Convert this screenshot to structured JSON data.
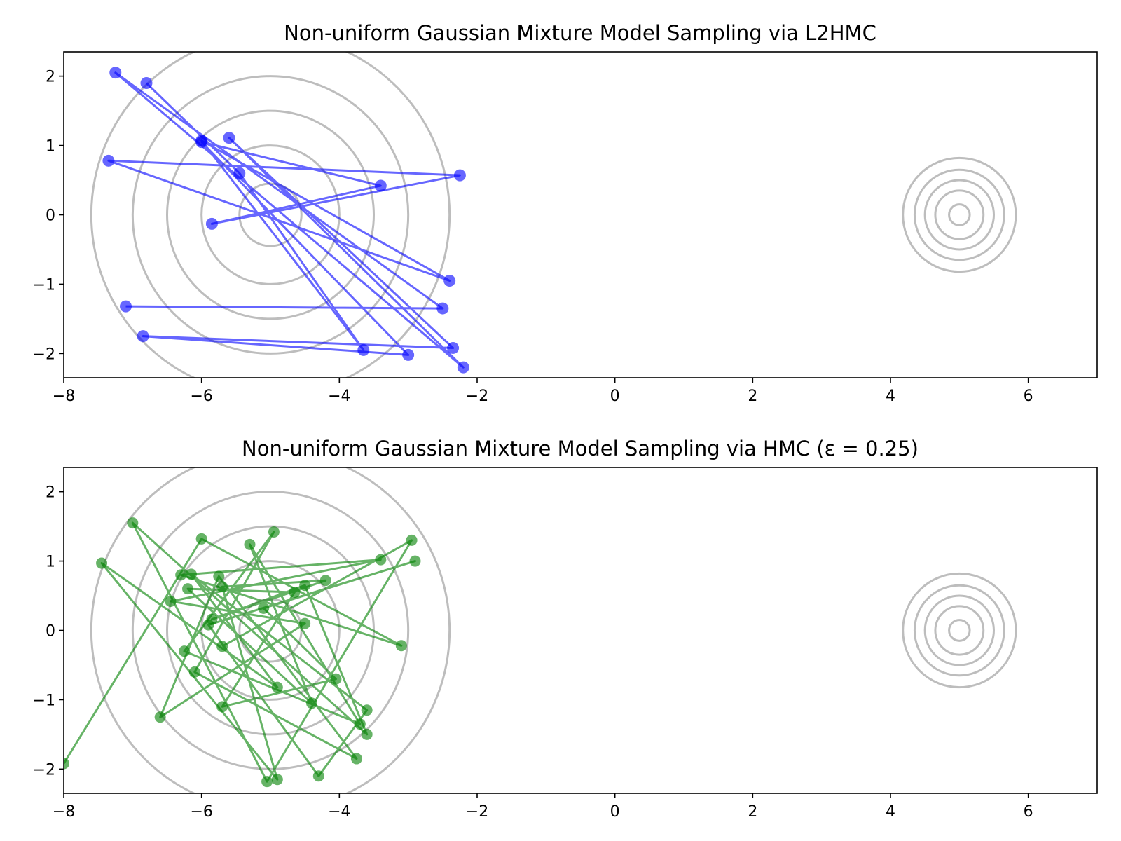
{
  "chart_data": [
    {
      "type": "line",
      "title": "Non-uniform Gaussian Mixture Model Sampling via L2HMC",
      "xlabel": "",
      "ylabel": "",
      "xlim": [
        -8,
        7
      ],
      "ylim": [
        -2.35,
        2.35
      ],
      "xticks": [
        -8,
        -6,
        -4,
        -2,
        0,
        2,
        4,
        6
      ],
      "yticks": [
        -2,
        -1,
        0,
        1,
        2
      ],
      "xtick_labels": [
        "−8",
        "−6",
        "−4",
        "−2",
        "0",
        "2",
        "4",
        "6"
      ],
      "ytick_labels": [
        "−2",
        "−1",
        "0",
        "1",
        "2"
      ],
      "grid": false,
      "contours": [
        {
          "center": [
            -5,
            0
          ],
          "radii": [
            0.45,
            1.0,
            1.5,
            2.0,
            2.6
          ]
        },
        {
          "center": [
            5,
            0
          ],
          "radii": [
            0.15,
            0.35,
            0.5,
            0.65,
            0.82
          ]
        }
      ],
      "series": [
        {
          "color": "#0000ff",
          "x": [
            -6.8,
            -5.45,
            -3.65,
            -6.0,
            -2.4,
            -7.35,
            -2.25,
            -5.85,
            -3.4,
            -6.0,
            -3.0,
            -6.85,
            -2.35,
            -5.6,
            -2.2,
            -7.25,
            -2.5,
            -7.1
          ],
          "y": [
            1.9,
            0.6,
            -1.95,
            1.07,
            -0.95,
            0.78,
            0.57,
            -0.13,
            0.42,
            1.05,
            -2.02,
            -1.75,
            -1.92,
            1.11,
            -2.2,
            2.05,
            -1.35,
            -1.32
          ]
        }
      ]
    },
    {
      "type": "line",
      "title": "Non-uniform Gaussian Mixture Model Sampling via HMC (ε = 0.25)",
      "xlabel": "",
      "ylabel": "",
      "xlim": [
        -8,
        7
      ],
      "ylim": [
        -2.35,
        2.35
      ],
      "xticks": [
        -8,
        -6,
        -4,
        -2,
        0,
        2,
        4,
        6
      ],
      "yticks": [
        -2,
        -1,
        0,
        1,
        2
      ],
      "xtick_labels": [
        "−8",
        "−6",
        "−4",
        "−2",
        "0",
        "2",
        "4",
        "6"
      ],
      "ytick_labels": [
        "−2",
        "−1",
        "0",
        "1",
        "2"
      ],
      "grid": false,
      "contours": [
        {
          "center": [
            -5,
            0
          ],
          "radii": [
            0.45,
            1.0,
            1.5,
            2.0,
            2.6
          ]
        },
        {
          "center": [
            5,
            0
          ],
          "radii": [
            0.15,
            0.35,
            0.5,
            0.65,
            0.82
          ]
        }
      ],
      "series": [
        {
          "color": "#008000",
          "x": [
            -8.0,
            -6.0,
            -3.1,
            -6.3,
            -3.4,
            -6.45,
            -4.5,
            -6.6,
            -5.75,
            -3.75,
            -6.1,
            -4.95,
            -6.25,
            -3.7,
            -5.3,
            -4.4,
            -6.2,
            -4.65,
            -5.7,
            -4.05,
            -5.1,
            -2.9,
            -5.9,
            -4.3,
            -3.6,
            -6.15,
            -4.9,
            -7.45,
            -4.9,
            -5.7,
            -4.2,
            -5.85,
            -4.5,
            -3.6,
            -7.0,
            -5.05,
            -2.95,
            -5.7
          ],
          "y": [
            -1.92,
            1.32,
            -0.22,
            0.8,
            1.02,
            0.42,
            0.1,
            -1.25,
            0.78,
            -1.85,
            -0.6,
            1.42,
            -0.3,
            -1.35,
            1.24,
            -1.05,
            0.6,
            0.55,
            -1.1,
            -0.7,
            0.32,
            1.0,
            0.08,
            -2.1,
            -1.15,
            0.81,
            -0.82,
            0.97,
            -2.15,
            0.63,
            0.72,
            0.16,
            0.65,
            -1.5,
            1.55,
            -2.18,
            1.3,
            -0.23
          ]
        }
      ]
    }
  ]
}
